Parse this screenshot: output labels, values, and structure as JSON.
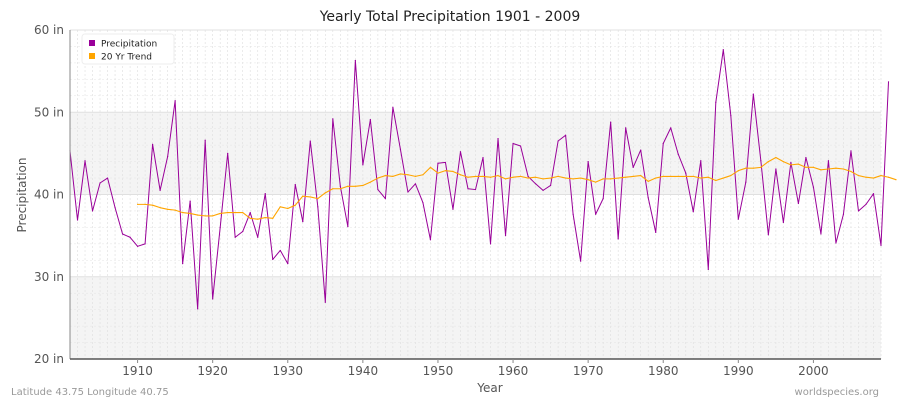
{
  "chart_data": {
    "type": "line",
    "title": "Yearly Total Precipitation 1901 - 2009",
    "xlabel": "Year",
    "ylabel": "Precipitation",
    "xlim": [
      1901,
      2009
    ],
    "ylim": [
      20,
      60
    ],
    "y_ticks": [
      20,
      30,
      40,
      50,
      60
    ],
    "y_tick_labels": [
      "20 in",
      "30 in",
      "40 in",
      "50 in",
      "60 in"
    ],
    "x_ticks": [
      1910,
      1920,
      1930,
      1940,
      1950,
      1960,
      1970,
      1980,
      1990,
      2000
    ],
    "grid": true,
    "legend_position": "top-left",
    "series": [
      {
        "name": "Precipitation",
        "color": "#990099",
        "x_start": 1901,
        "values": [
          45.3,
          36.9,
          44.1,
          38.0,
          41.4,
          42.0,
          38.4,
          35.2,
          34.8,
          33.7,
          34.0,
          46.1,
          40.5,
          44.6,
          51.4,
          31.6,
          39.2,
          26.1,
          46.6,
          27.3,
          36.0,
          45.0,
          34.8,
          35.5,
          37.8,
          34.8,
          40.1,
          32.1,
          33.2,
          31.6,
          41.2,
          36.7,
          46.5,
          38.5,
          26.9,
          49.2,
          41.0,
          36.1,
          56.3,
          43.6,
          49.1,
          40.6,
          39.5,
          50.6,
          45.5,
          40.3,
          41.3,
          39.0,
          34.5,
          43.8,
          43.9,
          38.2,
          45.2,
          40.7,
          40.6,
          44.5,
          34.0,
          46.8,
          35.0,
          46.2,
          45.9,
          42.2,
          41.3,
          40.5,
          41.1,
          46.5,
          47.2,
          37.6,
          31.9,
          44.0,
          37.6,
          39.5,
          48.8,
          34.6,
          48.1,
          43.3,
          45.4,
          39.6,
          35.4,
          46.2,
          48.1,
          44.9,
          42.6,
          37.9,
          44.1,
          30.9,
          51.2,
          57.6,
          49.6,
          37.0,
          41.5,
          52.2,
          44.1,
          35.1,
          43.1,
          36.6,
          43.9,
          38.9,
          44.5,
          40.9,
          35.2,
          44.1,
          34.1,
          37.6,
          45.3,
          38.0,
          38.8,
          40.1,
          33.8,
          53.7
        ]
      },
      {
        "name": "20 Yr Trend",
        "color": "#FFA500",
        "x_start": 1910,
        "values": [
          38.8,
          38.8,
          38.7,
          38.4,
          38.2,
          38.1,
          37.8,
          37.7,
          37.5,
          37.4,
          37.4,
          37.7,
          37.8,
          37.8,
          37.8,
          37.1,
          37.0,
          37.2,
          37.1,
          38.5,
          38.3,
          38.7,
          39.8,
          39.7,
          39.5,
          40.2,
          40.7,
          40.7,
          41.0,
          41.0,
          41.1,
          41.5,
          42.0,
          42.3,
          42.2,
          42.5,
          42.4,
          42.2,
          42.4,
          43.3,
          42.6,
          42.9,
          42.8,
          42.4,
          42.1,
          42.2,
          42.2,
          42.1,
          42.3,
          41.9,
          42.1,
          42.2,
          42.0,
          42.1,
          41.9,
          42.0,
          42.2,
          42.0,
          41.9,
          42.0,
          41.8,
          41.5,
          41.9,
          41.9,
          42.0,
          42.1,
          42.2,
          42.3,
          41.6,
          42.0,
          42.2,
          42.2,
          42.2,
          42.2,
          42.2,
          42.0,
          42.1,
          41.7,
          42.0,
          42.3,
          42.9,
          43.2,
          43.2,
          43.3,
          44.0,
          44.5,
          44.0,
          43.6,
          43.7,
          43.3,
          43.3,
          43.0,
          43.1,
          43.2,
          43.1,
          42.8,
          42.3,
          42.1,
          42.0,
          42.3,
          42.1,
          41.8
        ]
      }
    ]
  },
  "footer": {
    "location": "Latitude 43.75 Longitude 40.75",
    "source": "worldspecies.org"
  }
}
